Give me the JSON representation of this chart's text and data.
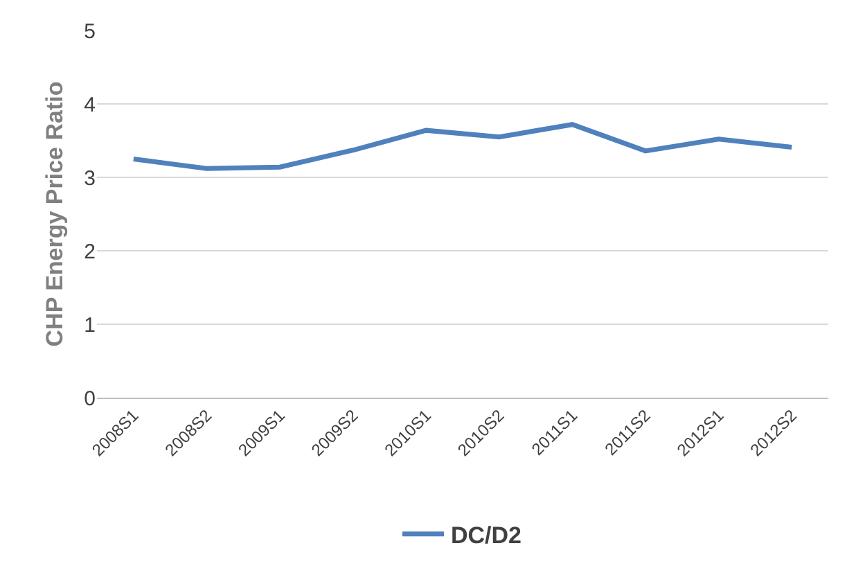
{
  "chart_data": {
    "type": "line",
    "ylabel": "CHP Energy Price Ratio",
    "categories": [
      "2008S1",
      "2008S2",
      "2009S1",
      "2009S2",
      "2010S1",
      "2010S2",
      "2011S1",
      "2011S2",
      "2012S1",
      "2012S2"
    ],
    "series": [
      {
        "name": "DC/D2",
        "color": "#4f81bd",
        "values": [
          3.25,
          3.12,
          3.14,
          3.37,
          3.64,
          3.55,
          3.72,
          3.36,
          3.52,
          3.41
        ]
      }
    ],
    "ylim": [
      0,
      5
    ],
    "yticks": [
      0,
      1,
      2,
      3,
      4,
      5
    ],
    "grid": "y",
    "legend": "bottom",
    "marker": "none",
    "line_style": "solid"
  }
}
